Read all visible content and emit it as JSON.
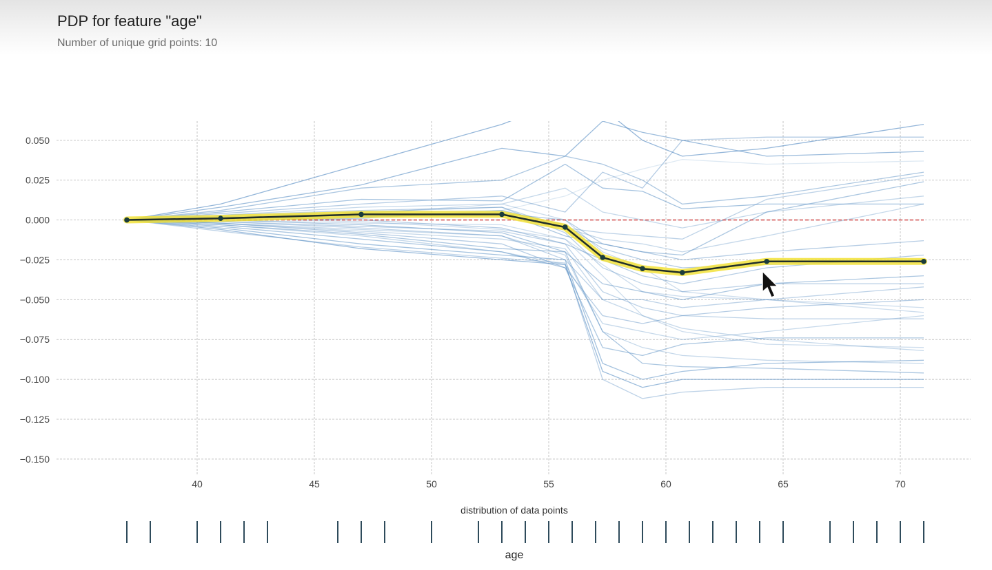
{
  "header": {
    "title": "PDP for feature \"age\"",
    "subtitle": "Number of unique grid points: 10"
  },
  "chart_data": {
    "type": "line",
    "title": "PDP for feature \"age\"",
    "subtitle": "Number of unique grid points: 10",
    "xlabel": "age",
    "ylabel": "",
    "xlim": [
      34,
      73
    ],
    "ylim": [
      -0.16,
      0.062
    ],
    "x_ticks": [
      40,
      45,
      50,
      55,
      60,
      65,
      70
    ],
    "y_ticks": [
      0.05,
      0.025,
      0.0,
      -0.025,
      -0.05,
      -0.075,
      -0.1,
      -0.125,
      -0.15
    ],
    "y_tick_labels": [
      "0.050",
      "0.025",
      "0.000",
      "−0.025",
      "−0.050",
      "−0.075",
      "−0.100",
      "−0.125",
      "−0.150"
    ],
    "grid": true,
    "grid_points": [
      37,
      41,
      47,
      53,
      55.7,
      57.3,
      59,
      60.7,
      64.3,
      71
    ],
    "pdp_values": [
      0.0,
      0.001,
      0.0035,
      0.0035,
      -0.0045,
      -0.0235,
      -0.0305,
      -0.033,
      -0.026,
      -0.026
    ],
    "reference_line": 0.0,
    "ice_lines": [
      [
        0,
        0.01,
        0.035,
        0.06,
        0.075,
        0.07,
        0.05,
        0.04,
        0.045,
        0.06
      ],
      [
        0,
        0.008,
        0.022,
        0.045,
        0.04,
        0.062,
        0.055,
        0.05,
        0.04,
        0.043
      ],
      [
        0,
        0.006,
        0.02,
        0.025,
        0.04,
        0.035,
        0.025,
        0.01,
        0.015,
        0.03
      ],
      [
        0,
        0.005,
        0.013,
        0.012,
        0.035,
        0.02,
        0.018,
        0.007,
        0.01,
        0.01
      ],
      [
        0,
        0.004,
        0.01,
        0.015,
        0.005,
        0.03,
        0.02,
        0.05,
        0.052,
        0.052
      ],
      [
        0,
        0.003,
        0.006,
        0.008,
        -0.005,
        -0.008,
        -0.01,
        -0.012,
        0.013,
        0.028
      ],
      [
        0,
        0.002,
        0.002,
        0.005,
        -0.01,
        -0.015,
        -0.02,
        -0.022,
        0.005,
        0.024
      ],
      [
        0,
        0.001,
        0.003,
        0.004,
        -0.005,
        -0.012,
        -0.015,
        -0.02,
        -0.01,
        0.01
      ],
      [
        0,
        0.002,
        0.0,
        -0.005,
        -0.015,
        -0.025,
        -0.035,
        -0.04,
        -0.03,
        -0.022
      ],
      [
        0,
        0.0,
        -0.003,
        -0.008,
        -0.02,
        -0.04,
        -0.045,
        -0.05,
        -0.04,
        -0.035
      ],
      [
        0,
        -0.001,
        -0.005,
        -0.01,
        -0.025,
        -0.05,
        -0.05,
        -0.055,
        -0.05,
        -0.042
      ],
      [
        0,
        -0.002,
        -0.008,
        -0.015,
        -0.03,
        -0.06,
        -0.065,
        -0.06,
        -0.055,
        -0.05
      ],
      [
        0,
        -0.003,
        -0.01,
        -0.02,
        -0.028,
        -0.065,
        -0.07,
        -0.075,
        -0.07,
        -0.06
      ],
      [
        0,
        -0.004,
        -0.012,
        -0.02,
        -0.03,
        -0.08,
        -0.085,
        -0.078,
        -0.074,
        -0.074
      ],
      [
        0,
        -0.005,
        -0.015,
        -0.022,
        -0.025,
        -0.09,
        -0.1,
        -0.095,
        -0.09,
        -0.088
      ],
      [
        0,
        -0.006,
        -0.018,
        -0.025,
        -0.028,
        -0.095,
        -0.105,
        -0.1,
        -0.1,
        -0.1
      ],
      [
        0,
        -0.007,
        -0.017,
        -0.024,
        -0.027,
        -0.1,
        -0.112,
        -0.108,
        -0.105,
        -0.105
      ],
      [
        0,
        -0.003,
        -0.009,
        -0.018,
        -0.02,
        -0.07,
        -0.09,
        -0.092,
        -0.093,
        -0.096
      ],
      [
        0,
        -0.002,
        -0.007,
        -0.012,
        -0.018,
        -0.05,
        -0.06,
        -0.068,
        -0.075,
        -0.082
      ],
      [
        0,
        0.001,
        0.004,
        0.01,
        0.0,
        -0.02,
        -0.03,
        -0.045,
        -0.05,
        -0.055
      ],
      [
        0,
        0.0,
        0.001,
        0.006,
        -0.003,
        -0.018,
        -0.025,
        -0.03,
        -0.028,
        -0.025
      ],
      [
        0,
        0.002,
        0.005,
        0.008,
        -0.008,
        -0.03,
        -0.04,
        -0.045,
        -0.04,
        -0.04
      ],
      [
        0,
        0.001,
        -0.001,
        -0.006,
        -0.012,
        -0.035,
        -0.06,
        -0.07,
        -0.078,
        -0.08
      ],
      [
        0,
        0.003,
        0.008,
        0.01,
        0.02,
        0.005,
        0.0,
        -0.005,
        0.005,
        0.015
      ],
      [
        0,
        0.0,
        -0.002,
        -0.003,
        -0.012,
        -0.028,
        -0.045,
        -0.048,
        -0.05,
        -0.058
      ],
      [
        0,
        -0.001,
        -0.004,
        -0.007,
        -0.015,
        -0.045,
        -0.055,
        -0.06,
        -0.062,
        -0.062
      ],
      [
        0,
        0.002,
        0.005,
        0.006,
        0.015,
        0.025,
        0.032,
        0.038,
        0.035,
        0.037
      ],
      [
        0,
        -0.002,
        -0.006,
        -0.01,
        -0.022,
        -0.07,
        -0.08,
        -0.085,
        -0.088,
        -0.09
      ],
      [
        0,
        0.001,
        0.002,
        0.004,
        0.0,
        -0.015,
        -0.02,
        -0.025,
        -0.02,
        -0.013
      ]
    ],
    "ice_opacity": [
      0.65,
      0.6,
      0.5,
      0.55,
      0.45,
      0.4,
      0.5,
      0.35,
      0.45,
      0.5,
      0.4,
      0.45,
      0.35,
      0.5,
      0.55,
      0.6,
      0.4,
      0.5,
      0.35,
      0.3,
      0.45,
      0.4,
      0.3,
      0.35,
      0.3,
      0.4,
      0.2,
      0.35,
      0.45
    ],
    "distribution_label": "distribution of data points",
    "distribution_points": [
      37,
      38,
      40,
      41,
      42,
      43,
      46,
      47,
      48,
      50,
      52,
      53,
      54,
      55,
      56,
      57,
      58,
      59,
      60,
      61,
      62,
      63,
      64,
      65,
      67,
      68,
      69,
      70,
      71
    ],
    "colors": {
      "ice": "#5a8fc4",
      "pdp": "#1f2d2a",
      "pdp_highlight": "#f2e23a",
      "marker": "#1a3c3c",
      "reference": "#cc3333",
      "grid": "#c4c4c4",
      "rug": "#2e4b5b"
    }
  }
}
